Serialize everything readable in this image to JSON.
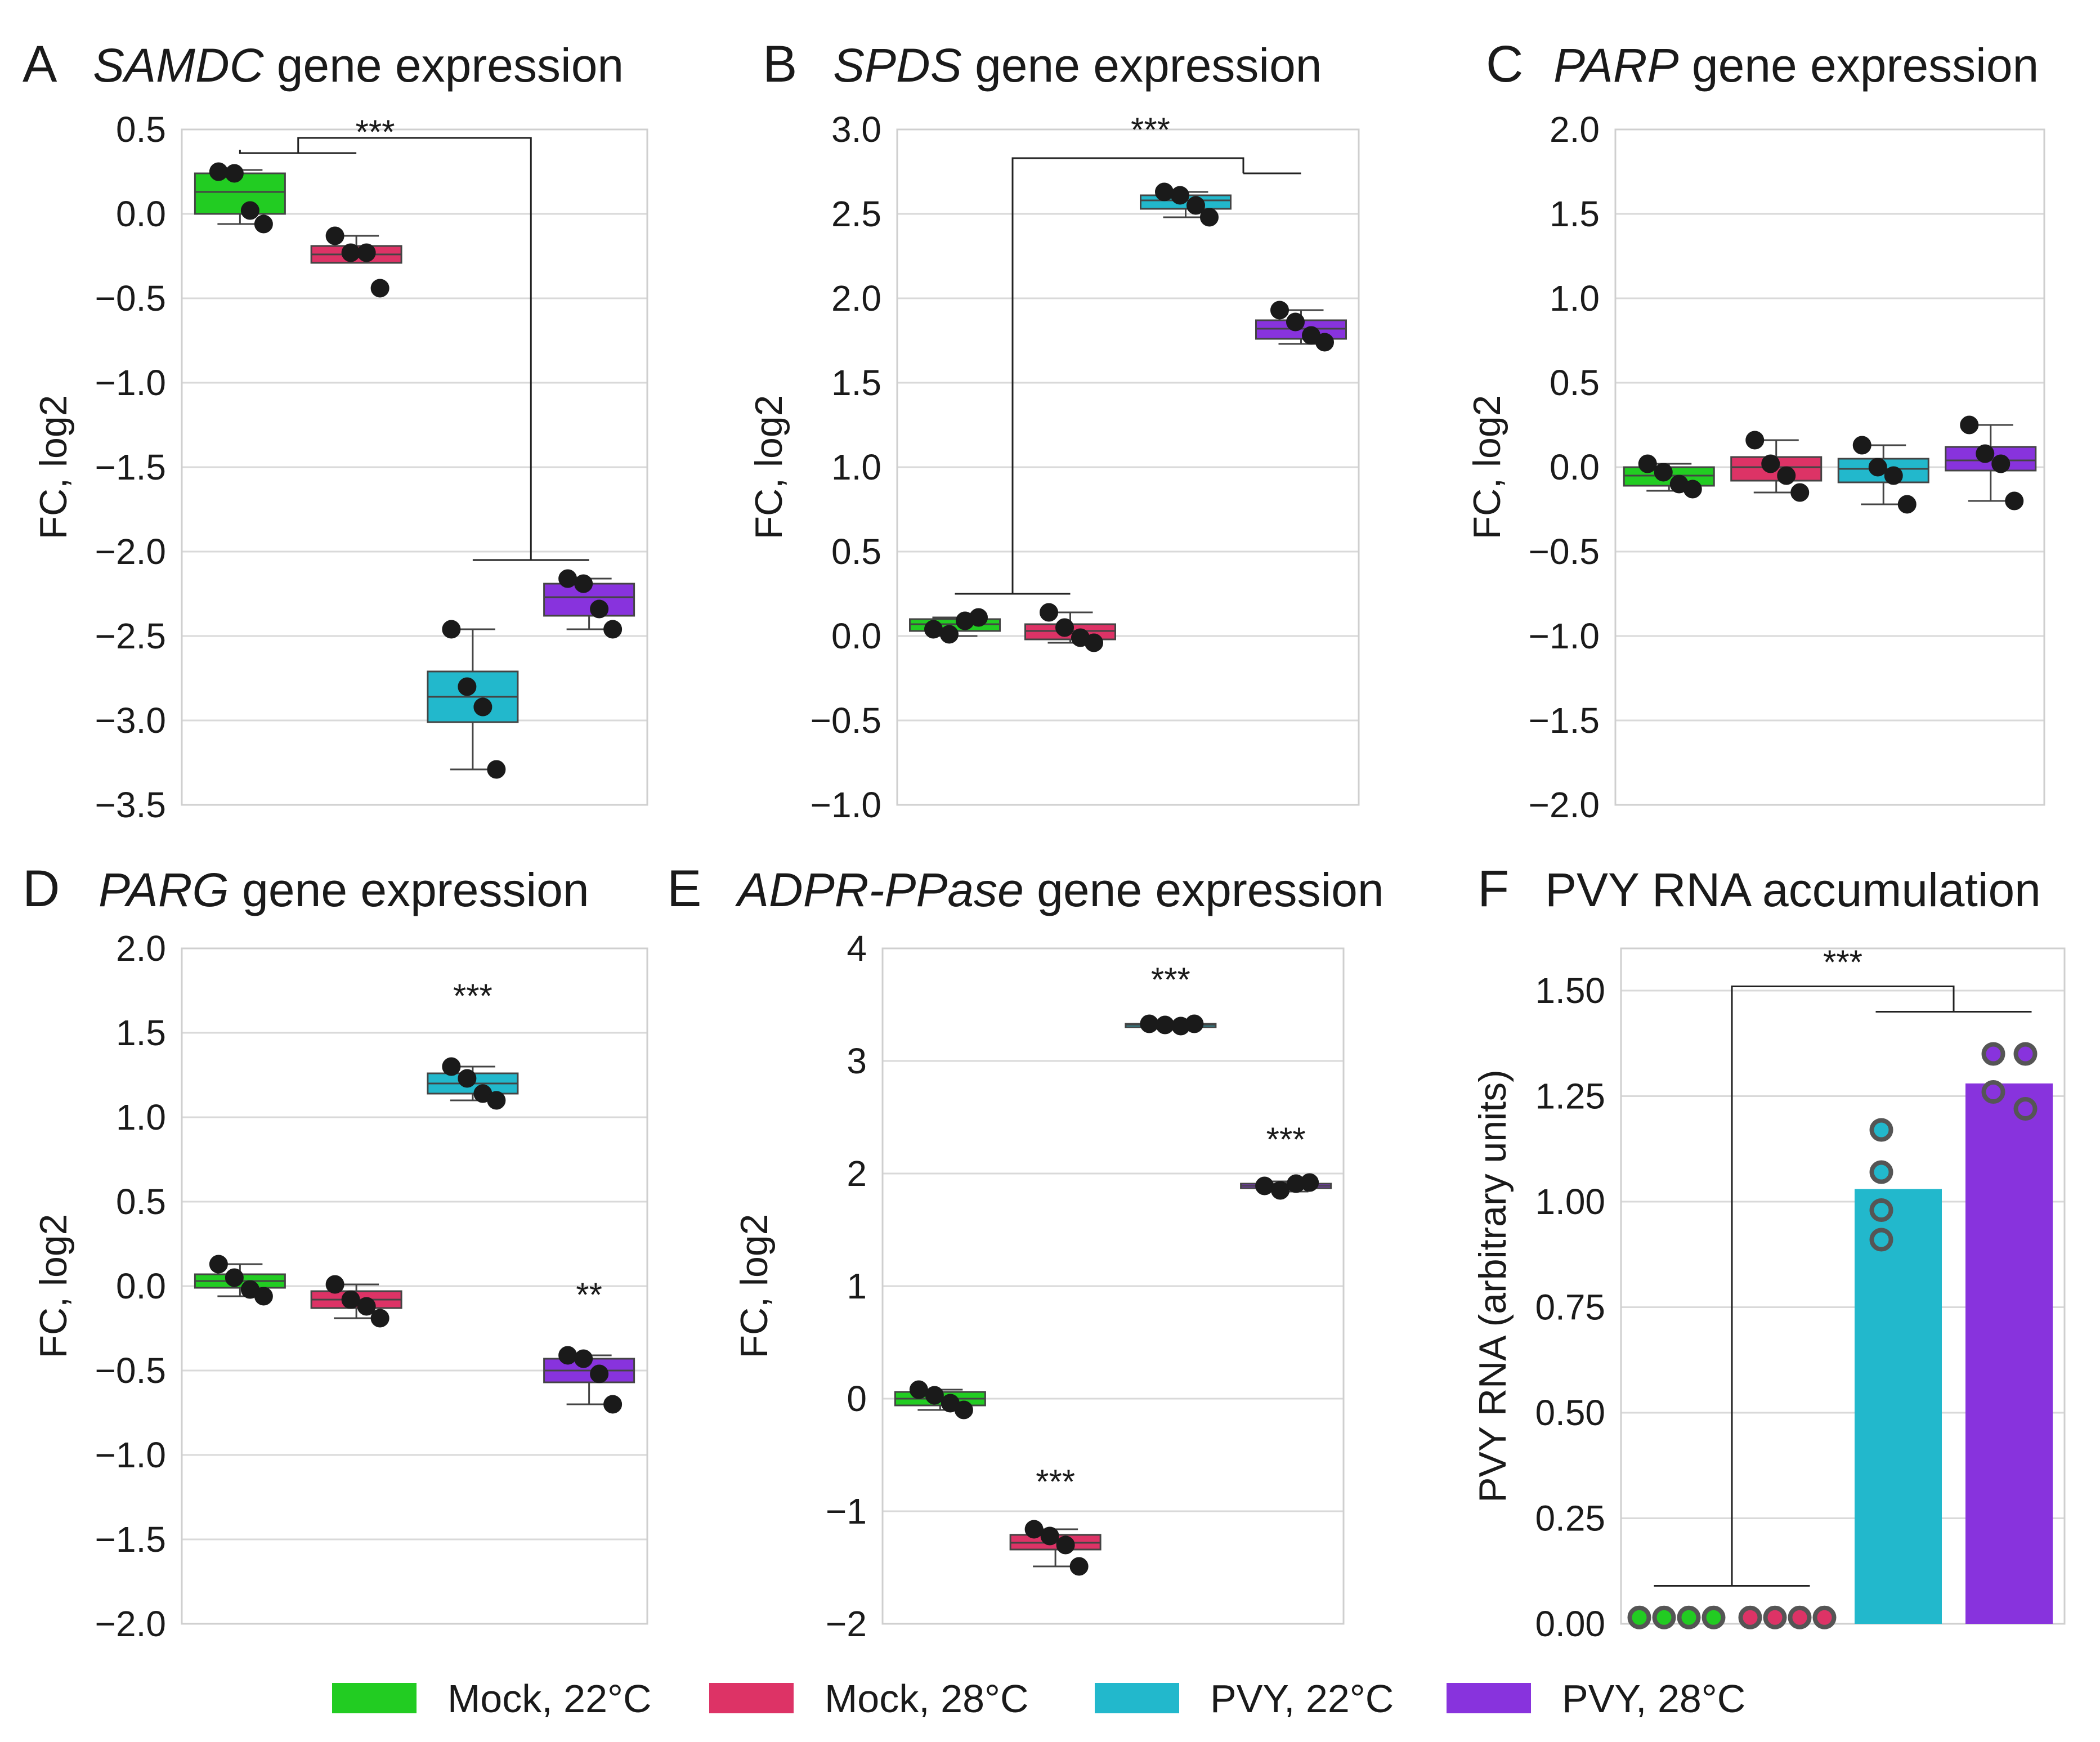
{
  "legend": [
    {
      "label": "Mock, 22°C",
      "color": "#22cc22"
    },
    {
      "label": "Mock, 28°C",
      "color": "#dd3366"
    },
    {
      "label": "PVY, 22°C",
      "color": "#22b8cc"
    },
    {
      "label": "PVY, 28°C",
      "color": "#8833dd"
    }
  ],
  "chart_data": [
    {
      "panel": "A",
      "type": "box",
      "title_gene": "SAMDC",
      "title_rest": " gene expression",
      "ylabel": "FC, log2",
      "ylim": [
        -3.5,
        0.5
      ],
      "yticks": [
        0.5,
        0.0,
        -0.5,
        -1.0,
        -1.5,
        -2.0,
        -2.5,
        -3.0,
        -3.5
      ],
      "ytick_labels": [
        "0.5",
        "0.0",
        "−0.5",
        "−1.0",
        "−1.5",
        "−2.0",
        "−2.5",
        "−3.0",
        "−3.5"
      ],
      "series": [
        {
          "name": "Mock, 22°C",
          "q1": 0.0,
          "median": 0.13,
          "q3": 0.24,
          "whisker_low": -0.06,
          "whisker_high": 0.26,
          "points": [
            0.25,
            0.24,
            0.02,
            -0.06
          ]
        },
        {
          "name": "Mock, 28°C",
          "q1": -0.29,
          "median": -0.24,
          "q3": -0.19,
          "whisker_low": -0.29,
          "whisker_high": -0.13,
          "points": [
            -0.13,
            -0.23,
            -0.23,
            -0.44
          ]
        },
        {
          "name": "PVY, 22°C",
          "q1": -3.01,
          "median": -2.86,
          "q3": -2.71,
          "whisker_low": -3.29,
          "whisker_high": -2.46,
          "points": [
            -2.46,
            -2.8,
            -2.92,
            -3.29
          ]
        },
        {
          "name": "PVY, 28°C",
          "q1": -2.38,
          "median": -2.27,
          "q3": -2.19,
          "whisker_low": -2.46,
          "whisker_high": -2.16,
          "points": [
            -2.16,
            -2.19,
            -2.34,
            -2.46
          ]
        }
      ],
      "brackets": [
        {
          "left": [
            0,
            1
          ],
          "right": [
            2,
            3
          ],
          "label": "***"
        }
      ],
      "stars": []
    },
    {
      "panel": "B",
      "type": "box",
      "title_gene": "SPDS",
      "title_rest": " gene expression",
      "ylabel": "FC, log2",
      "ylim": [
        -1.0,
        3.0
      ],
      "yticks": [
        3.0,
        2.5,
        2.0,
        1.5,
        1.0,
        0.5,
        0.0,
        -0.5,
        -1.0
      ],
      "ytick_labels": [
        "3.0",
        "2.5",
        "2.0",
        "1.5",
        "1.0",
        "0.5",
        "0.0",
        "−0.5",
        "−1.0"
      ],
      "series": [
        {
          "name": "Mock, 22°C",
          "q1": 0.03,
          "median": 0.07,
          "q3": 0.1,
          "whisker_low": 0.0,
          "whisker_high": 0.11,
          "points": [
            0.04,
            0.01,
            0.09,
            0.11
          ]
        },
        {
          "name": "Mock, 28°C",
          "q1": -0.02,
          "median": 0.03,
          "q3": 0.07,
          "whisker_low": -0.04,
          "whisker_high": 0.14,
          "points": [
            0.14,
            0.05,
            -0.01,
            -0.04
          ]
        },
        {
          "name": "PVY, 22°C",
          "q1": 2.53,
          "median": 2.58,
          "q3": 2.61,
          "whisker_low": 2.48,
          "whisker_high": 2.63,
          "points": [
            2.63,
            2.61,
            2.55,
            2.48
          ]
        },
        {
          "name": "PVY, 28°C",
          "q1": 1.76,
          "median": 1.82,
          "q3": 1.87,
          "whisker_low": 1.73,
          "whisker_high": 1.93,
          "points": [
            1.93,
            1.86,
            1.78,
            1.74
          ]
        }
      ],
      "brackets": [
        {
          "left": [
            0,
            1
          ],
          "right": [
            2,
            3
          ],
          "label": "***"
        }
      ],
      "stars": []
    },
    {
      "panel": "C",
      "type": "box",
      "title_gene": "PARP",
      "title_rest": " gene expression",
      "ylabel": "FC, log2",
      "ylim": [
        -2.0,
        2.0
      ],
      "yticks": [
        2.0,
        1.5,
        1.0,
        0.5,
        0.0,
        -0.5,
        -1.0,
        -1.5,
        -2.0
      ],
      "ytick_labels": [
        "2.0",
        "1.5",
        "1.0",
        "0.5",
        "0.0",
        "−0.5",
        "−1.0",
        "−1.5",
        "−2.0"
      ],
      "series": [
        {
          "name": "Mock, 22°C",
          "q1": -0.11,
          "median": -0.05,
          "q3": 0.0,
          "whisker_low": -0.14,
          "whisker_high": 0.02,
          "points": [
            0.02,
            -0.03,
            -0.1,
            -0.13
          ]
        },
        {
          "name": "Mock, 28°C",
          "q1": -0.08,
          "median": 0.0,
          "q3": 0.06,
          "whisker_low": -0.15,
          "whisker_high": 0.16,
          "points": [
            0.16,
            0.02,
            -0.05,
            -0.15
          ]
        },
        {
          "name": "PVY, 22°C",
          "q1": -0.09,
          "median": -0.01,
          "q3": 0.05,
          "whisker_low": -0.22,
          "whisker_high": 0.13,
          "points": [
            0.13,
            0.0,
            -0.05,
            -0.22
          ]
        },
        {
          "name": "PVY, 28°C",
          "q1": -0.02,
          "median": 0.04,
          "q3": 0.12,
          "whisker_low": -0.2,
          "whisker_high": 0.25,
          "points": [
            0.25,
            0.08,
            0.02,
            -0.2
          ]
        }
      ],
      "brackets": [],
      "stars": []
    },
    {
      "panel": "D",
      "type": "box",
      "title_gene": "PARG",
      "title_rest": " gene expression",
      "ylabel": "FC, log2",
      "ylim": [
        -2.0,
        2.0
      ],
      "yticks": [
        2.0,
        1.5,
        1.0,
        0.5,
        0.0,
        -0.5,
        -1.0,
        -1.5,
        -2.0
      ],
      "ytick_labels": [
        "2.0",
        "1.5",
        "1.0",
        "0.5",
        "0.0",
        "−0.5",
        "−1.0",
        "−1.5",
        "−2.0"
      ],
      "series": [
        {
          "name": "Mock, 22°C",
          "q1": -0.01,
          "median": 0.03,
          "q3": 0.07,
          "whisker_low": -0.06,
          "whisker_high": 0.13,
          "points": [
            0.13,
            0.05,
            -0.02,
            -0.06
          ]
        },
        {
          "name": "Mock, 28°C",
          "q1": -0.13,
          "median": -0.08,
          "q3": -0.03,
          "whisker_low": -0.19,
          "whisker_high": 0.01,
          "points": [
            0.01,
            -0.08,
            -0.12,
            -0.19
          ]
        },
        {
          "name": "PVY, 22°C",
          "q1": 1.14,
          "median": 1.2,
          "q3": 1.26,
          "whisker_low": 1.1,
          "whisker_high": 1.3,
          "points": [
            1.3,
            1.23,
            1.14,
            1.1
          ]
        },
        {
          "name": "PVY, 28°C",
          "q1": -0.57,
          "median": -0.5,
          "q3": -0.43,
          "whisker_low": -0.7,
          "whisker_high": -0.41,
          "points": [
            -0.41,
            -0.43,
            -0.52,
            -0.7
          ]
        }
      ],
      "brackets": [],
      "stars": [
        {
          "series": 2,
          "label": "***",
          "y": 1.65
        },
        {
          "series": 3,
          "label": "**",
          "y": -0.12
        }
      ]
    },
    {
      "panel": "E",
      "type": "box",
      "title_gene": "ADPR-PPase",
      "title_rest": " gene expression",
      "ylabel": "FC, log2",
      "ylim": [
        -2,
        4
      ],
      "yticks": [
        4,
        3,
        2,
        1,
        0,
        -1,
        -2
      ],
      "ytick_labels": [
        "4",
        "3",
        "2",
        "1",
        "0",
        "−1",
        "−2"
      ],
      "series": [
        {
          "name": "Mock, 22°C",
          "q1": -0.06,
          "median": 0.0,
          "q3": 0.06,
          "whisker_low": -0.1,
          "whisker_high": 0.08,
          "points": [
            0.08,
            0.03,
            -0.04,
            -0.1
          ]
        },
        {
          "name": "Mock, 28°C",
          "q1": -1.34,
          "median": -1.28,
          "q3": -1.21,
          "whisker_low": -1.49,
          "whisker_high": -1.16,
          "points": [
            -1.16,
            -1.22,
            -1.3,
            -1.49
          ]
        },
        {
          "name": "PVY, 22°C",
          "q1": 3.31,
          "median": 3.32,
          "q3": 3.33,
          "whisker_low": 3.31,
          "whisker_high": 3.34,
          "points": [
            3.33,
            3.32,
            3.31,
            3.33
          ]
        },
        {
          "name": "PVY, 28°C",
          "q1": 1.87,
          "median": 1.89,
          "q3": 1.91,
          "whisker_low": 1.84,
          "whisker_high": 1.93,
          "points": [
            1.89,
            1.85,
            1.91,
            1.92
          ]
        }
      ],
      "brackets": [],
      "stars": [
        {
          "series": 1,
          "label": "***",
          "y": -0.84
        },
        {
          "series": 2,
          "label": "***",
          "y": 3.62
        },
        {
          "series": 3,
          "label": "***",
          "y": 2.2
        }
      ]
    },
    {
      "panel": "F",
      "type": "bar",
      "title_gene": "",
      "title_rest": "PVY RNA accumulation",
      "ylabel": "PVY RNA (arbitrary units)",
      "ylim": [
        0,
        1.6
      ],
      "yticks": [
        1.5,
        1.25,
        1.0,
        0.75,
        0.5,
        0.25,
        0.0
      ],
      "ytick_labels": [
        "1.50",
        "1.25",
        "1.00",
        "0.75",
        "0.50",
        "0.25",
        "0.00"
      ],
      "series": [
        {
          "name": "Mock, 22°C",
          "value": 0.0,
          "points": [
            0.015,
            0.015,
            0.015,
            0.015
          ]
        },
        {
          "name": "Mock, 28°C",
          "value": 0.0,
          "points": [
            0.015,
            0.015,
            0.015,
            0.015
          ]
        },
        {
          "name": "PVY, 22°C",
          "value": 1.03,
          "points": [
            1.17,
            1.07,
            0.98,
            0.91
          ]
        },
        {
          "name": "PVY, 28°C",
          "value": 1.28,
          "points": [
            1.35,
            1.35,
            1.26,
            1.22
          ]
        }
      ],
      "brackets": [
        {
          "left": [
            0,
            1
          ],
          "right": [
            2,
            3
          ],
          "label": "***"
        }
      ],
      "stars": []
    }
  ]
}
